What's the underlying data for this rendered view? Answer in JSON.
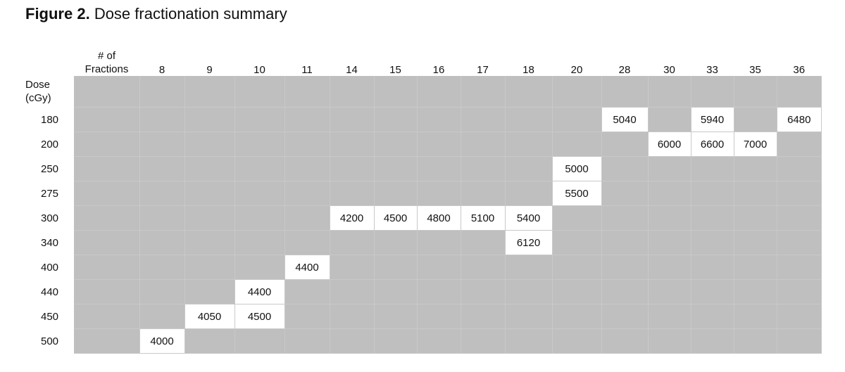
{
  "title": {
    "bold": "Figure 2.",
    "text": "Dose fractionation summary"
  },
  "chart_data": {
    "type": "table",
    "corner_header": {
      "line1": "# of",
      "line2": "Fractions"
    },
    "row_header_label": {
      "line1": "Dose",
      "line2": "(cGy)"
    },
    "fractions": [
      "8",
      "9",
      "10",
      "11",
      "14",
      "15",
      "16",
      "17",
      "18",
      "20",
      "28",
      "30",
      "33",
      "35",
      "36"
    ],
    "doses": [
      "180",
      "200",
      "250",
      "275",
      "300",
      "340",
      "400",
      "440",
      "450",
      "500"
    ],
    "cells": [
      {
        "dose": "180",
        "fractions": "28",
        "value": "5040"
      },
      {
        "dose": "180",
        "fractions": "33",
        "value": "5940"
      },
      {
        "dose": "180",
        "fractions": "36",
        "value": "6480"
      },
      {
        "dose": "200",
        "fractions": "30",
        "value": "6000"
      },
      {
        "dose": "200",
        "fractions": "33",
        "value": "6600"
      },
      {
        "dose": "200",
        "fractions": "35",
        "value": "7000"
      },
      {
        "dose": "250",
        "fractions": "20",
        "value": "5000"
      },
      {
        "dose": "275",
        "fractions": "20",
        "value": "5500"
      },
      {
        "dose": "300",
        "fractions": "14",
        "value": "4200"
      },
      {
        "dose": "300",
        "fractions": "15",
        "value": "4500"
      },
      {
        "dose": "300",
        "fractions": "16",
        "value": "4800"
      },
      {
        "dose": "300",
        "fractions": "17",
        "value": "5100"
      },
      {
        "dose": "300",
        "fractions": "18",
        "value": "5400"
      },
      {
        "dose": "340",
        "fractions": "18",
        "value": "6120"
      },
      {
        "dose": "400",
        "fractions": "11",
        "value": "4400"
      },
      {
        "dose": "440",
        "fractions": "10",
        "value": "4400"
      },
      {
        "dose": "450",
        "fractions": "9",
        "value": "4050"
      },
      {
        "dose": "450",
        "fractions": "10",
        "value": "4500"
      },
      {
        "dose": "500",
        "fractions": "8",
        "value": "4000"
      }
    ],
    "colors": {
      "empty": "#bfbfbf",
      "filled": "#ffffff"
    }
  }
}
